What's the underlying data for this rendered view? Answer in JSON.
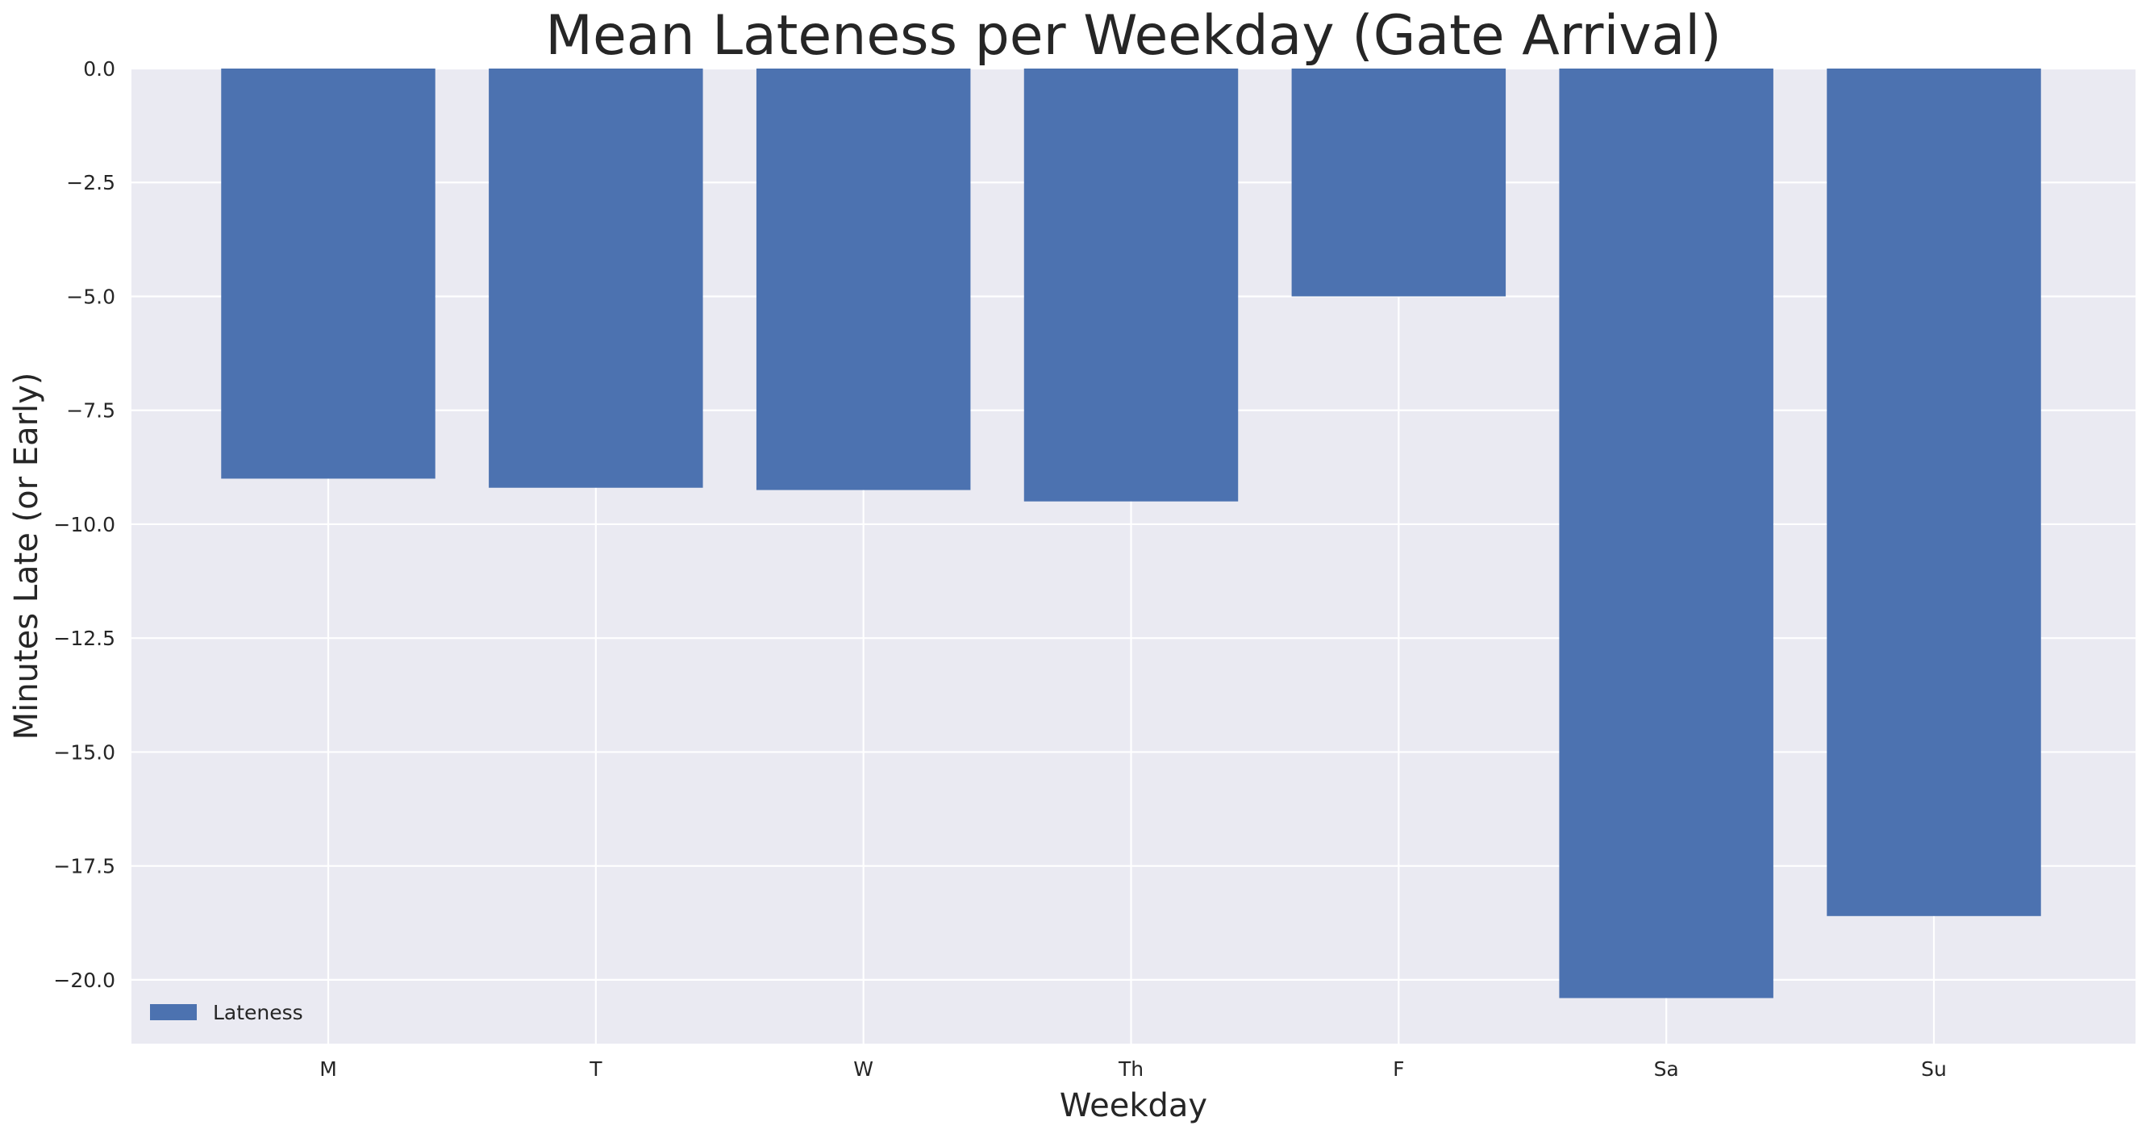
{
  "chart_data": {
    "type": "bar",
    "title": "Mean Lateness per Weekday (Gate Arrival)",
    "xlabel": "Weekday",
    "ylabel": "Minutes Late (or Early)",
    "categories": [
      "M",
      "T",
      "W",
      "Th",
      "F",
      "Sa",
      "Su"
    ],
    "series": [
      {
        "name": "Lateness",
        "values": [
          -9.0,
          -9.2,
          -9.25,
          -9.5,
          -5.0,
          -20.4,
          -18.6
        ],
        "color": "#4c72b0"
      }
    ],
    "ylim": [
      -21.4,
      0.0
    ],
    "yticks": [
      0.0,
      -2.5,
      -5.0,
      -7.5,
      -10.0,
      -12.5,
      -15.0,
      -17.5,
      -20.0
    ],
    "ytick_labels": [
      "0.0",
      "−2.5",
      "−5.0",
      "−7.5",
      "−10.0",
      "−12.5",
      "−15.0",
      "−17.5",
      "−20.0"
    ],
    "grid": true,
    "legend_position": "lower-left",
    "background_color": "#eaeaf2",
    "grid_color": "#ffffff"
  }
}
